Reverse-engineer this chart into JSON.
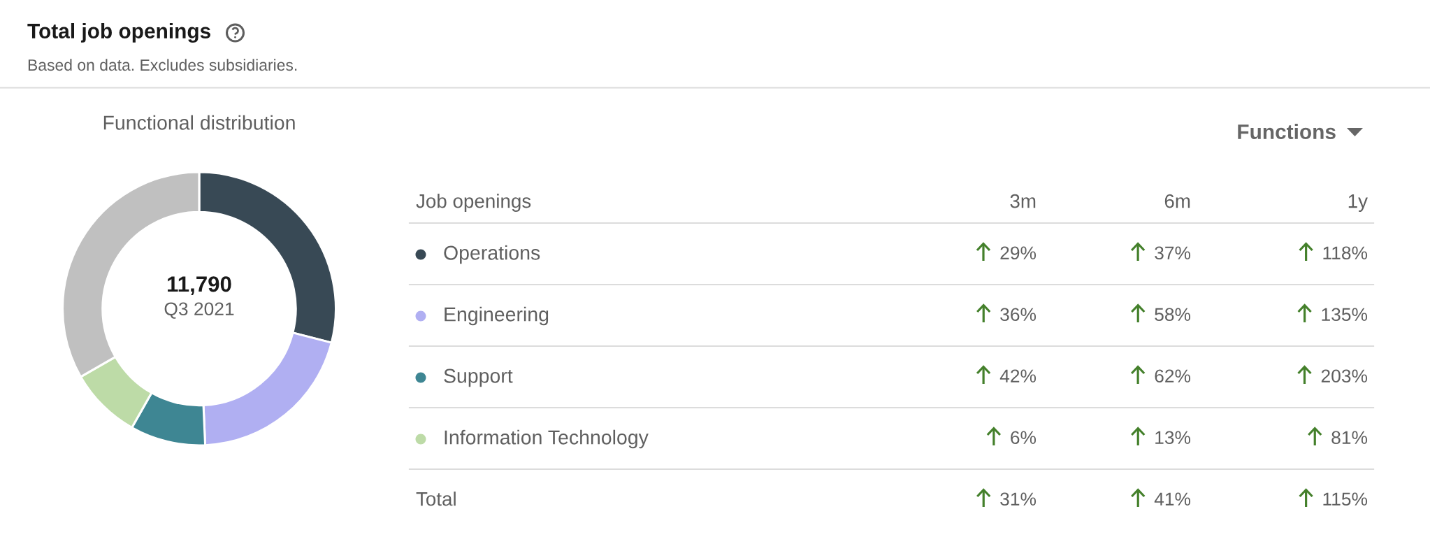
{
  "chart_data": [
    {
      "type": "other",
      "title": "Total job openings",
      "subtitle": "Based on data. Excludes subsidiaries."
    },
    {
      "type": "donut",
      "title": "Functional distribution",
      "categories": [
        "Operations",
        "Engineering",
        "Support",
        "Information Technology",
        null
      ],
      "values": [
        29.0,
        20.3,
        8.9,
        8.5,
        33.3
      ],
      "colors": [
        "#384955",
        "#b0aff2",
        "#3e8693",
        "#bddba7",
        "#c0c0c0"
      ],
      "annotations": [
        "11,790",
        "Q3 2021"
      ],
      "legend": "right"
    },
    {
      "type": "other",
      "title": "Functions",
      "ylabel": "Job openings",
      "categories": [
        "3m",
        "6m",
        "1y"
      ],
      "y_categories": [
        null,
        null,
        null,
        null,
        "Total"
      ],
      "cell_labels": [
        [
          "29%",
          "37%",
          "118%"
        ],
        [
          "36%",
          "58%",
          "135%"
        ],
        [
          "42%",
          "62%",
          "203%"
        ],
        [
          "6%",
          "13%",
          "81%"
        ],
        [
          "31%",
          "41%",
          "115%"
        ]
      ]
    }
  ]
}
